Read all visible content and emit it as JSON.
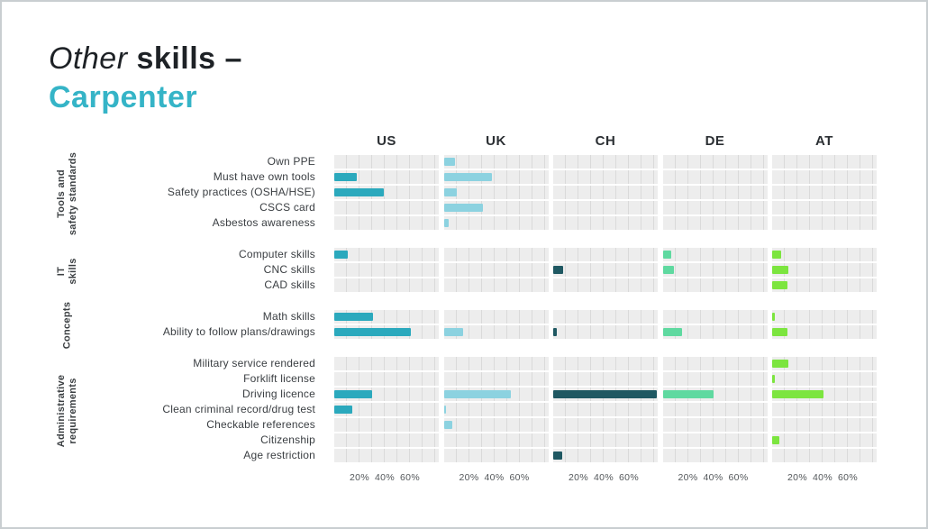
{
  "title": {
    "line1_italic": "Other",
    "line1_bold": "skills –",
    "line2": "Carpenter",
    "accent_color": "#35b4c7"
  },
  "chart_data": {
    "type": "bar",
    "orientation": "horizontal",
    "unit": "%",
    "axis_ticks": [
      "20%",
      "40%",
      "60%"
    ],
    "axis_max": 80,
    "grid_step_pct": 10,
    "countries": [
      "US",
      "UK",
      "CH",
      "DE",
      "AT"
    ],
    "colors": {
      "US": "#2ba9bd",
      "UK": "#8cd2e0",
      "CH": "#1f5862",
      "DE": "#5fd9a0",
      "AT": "#7ce53f"
    },
    "groups": [
      {
        "label_lines": [
          "Tools and",
          "safety standards"
        ],
        "rows": [
          {
            "label": "Own PPE",
            "values": [
              0,
              9,
              0,
              0,
              0
            ]
          },
          {
            "label": "Must have own tools",
            "values": [
              18,
              38,
              0,
              0,
              0
            ]
          },
          {
            "label": "Safety practices (OSHA/HSE)",
            "values": [
              39,
              10,
              0,
              0,
              0
            ]
          },
          {
            "label": "CSCS card",
            "values": [
              0,
              31,
              0,
              0,
              0
            ]
          },
          {
            "label": "Asbestos awareness",
            "values": [
              0,
              4,
              0,
              0,
              0
            ]
          }
        ]
      },
      {
        "label_lines": [
          "IT",
          "skills"
        ],
        "rows": [
          {
            "label": "Computer skills",
            "values": [
              11,
              0,
              0,
              7,
              7
            ]
          },
          {
            "label": "CNC skills",
            "values": [
              0,
              0,
              8,
              9,
              13
            ]
          },
          {
            "label": "CAD skills",
            "values": [
              0,
              0,
              0,
              0,
              12
            ]
          }
        ]
      },
      {
        "label_lines": [
          "Concepts"
        ],
        "rows": [
          {
            "label": "Math skills",
            "values": [
              31,
              0,
              0,
              0,
              2
            ]
          },
          {
            "label": "Ability to follow plans/drawings",
            "values": [
              61,
              15,
              3,
              15,
              12
            ]
          }
        ]
      },
      {
        "label_lines": [
          "Administrative",
          "requirements"
        ],
        "rows": [
          {
            "label": "Military service rendered",
            "values": [
              0,
              0,
              0,
              0,
              13
            ]
          },
          {
            "label": "Forklift license",
            "values": [
              0,
              0,
              0,
              0,
              2
            ]
          },
          {
            "label": "Driving licence",
            "values": [
              30,
              53,
              82,
              40,
              41
            ]
          },
          {
            "label": "Clean criminal record/drug test",
            "values": [
              14,
              2,
              0,
              0,
              0
            ]
          },
          {
            "label": "Checkable references",
            "values": [
              0,
              7,
              0,
              0,
              0
            ]
          },
          {
            "label": "Citizenship",
            "values": [
              0,
              0,
              0,
              0,
              6
            ]
          },
          {
            "label": "Age restriction",
            "values": [
              0,
              0,
              7,
              0,
              0
            ]
          }
        ]
      }
    ]
  }
}
